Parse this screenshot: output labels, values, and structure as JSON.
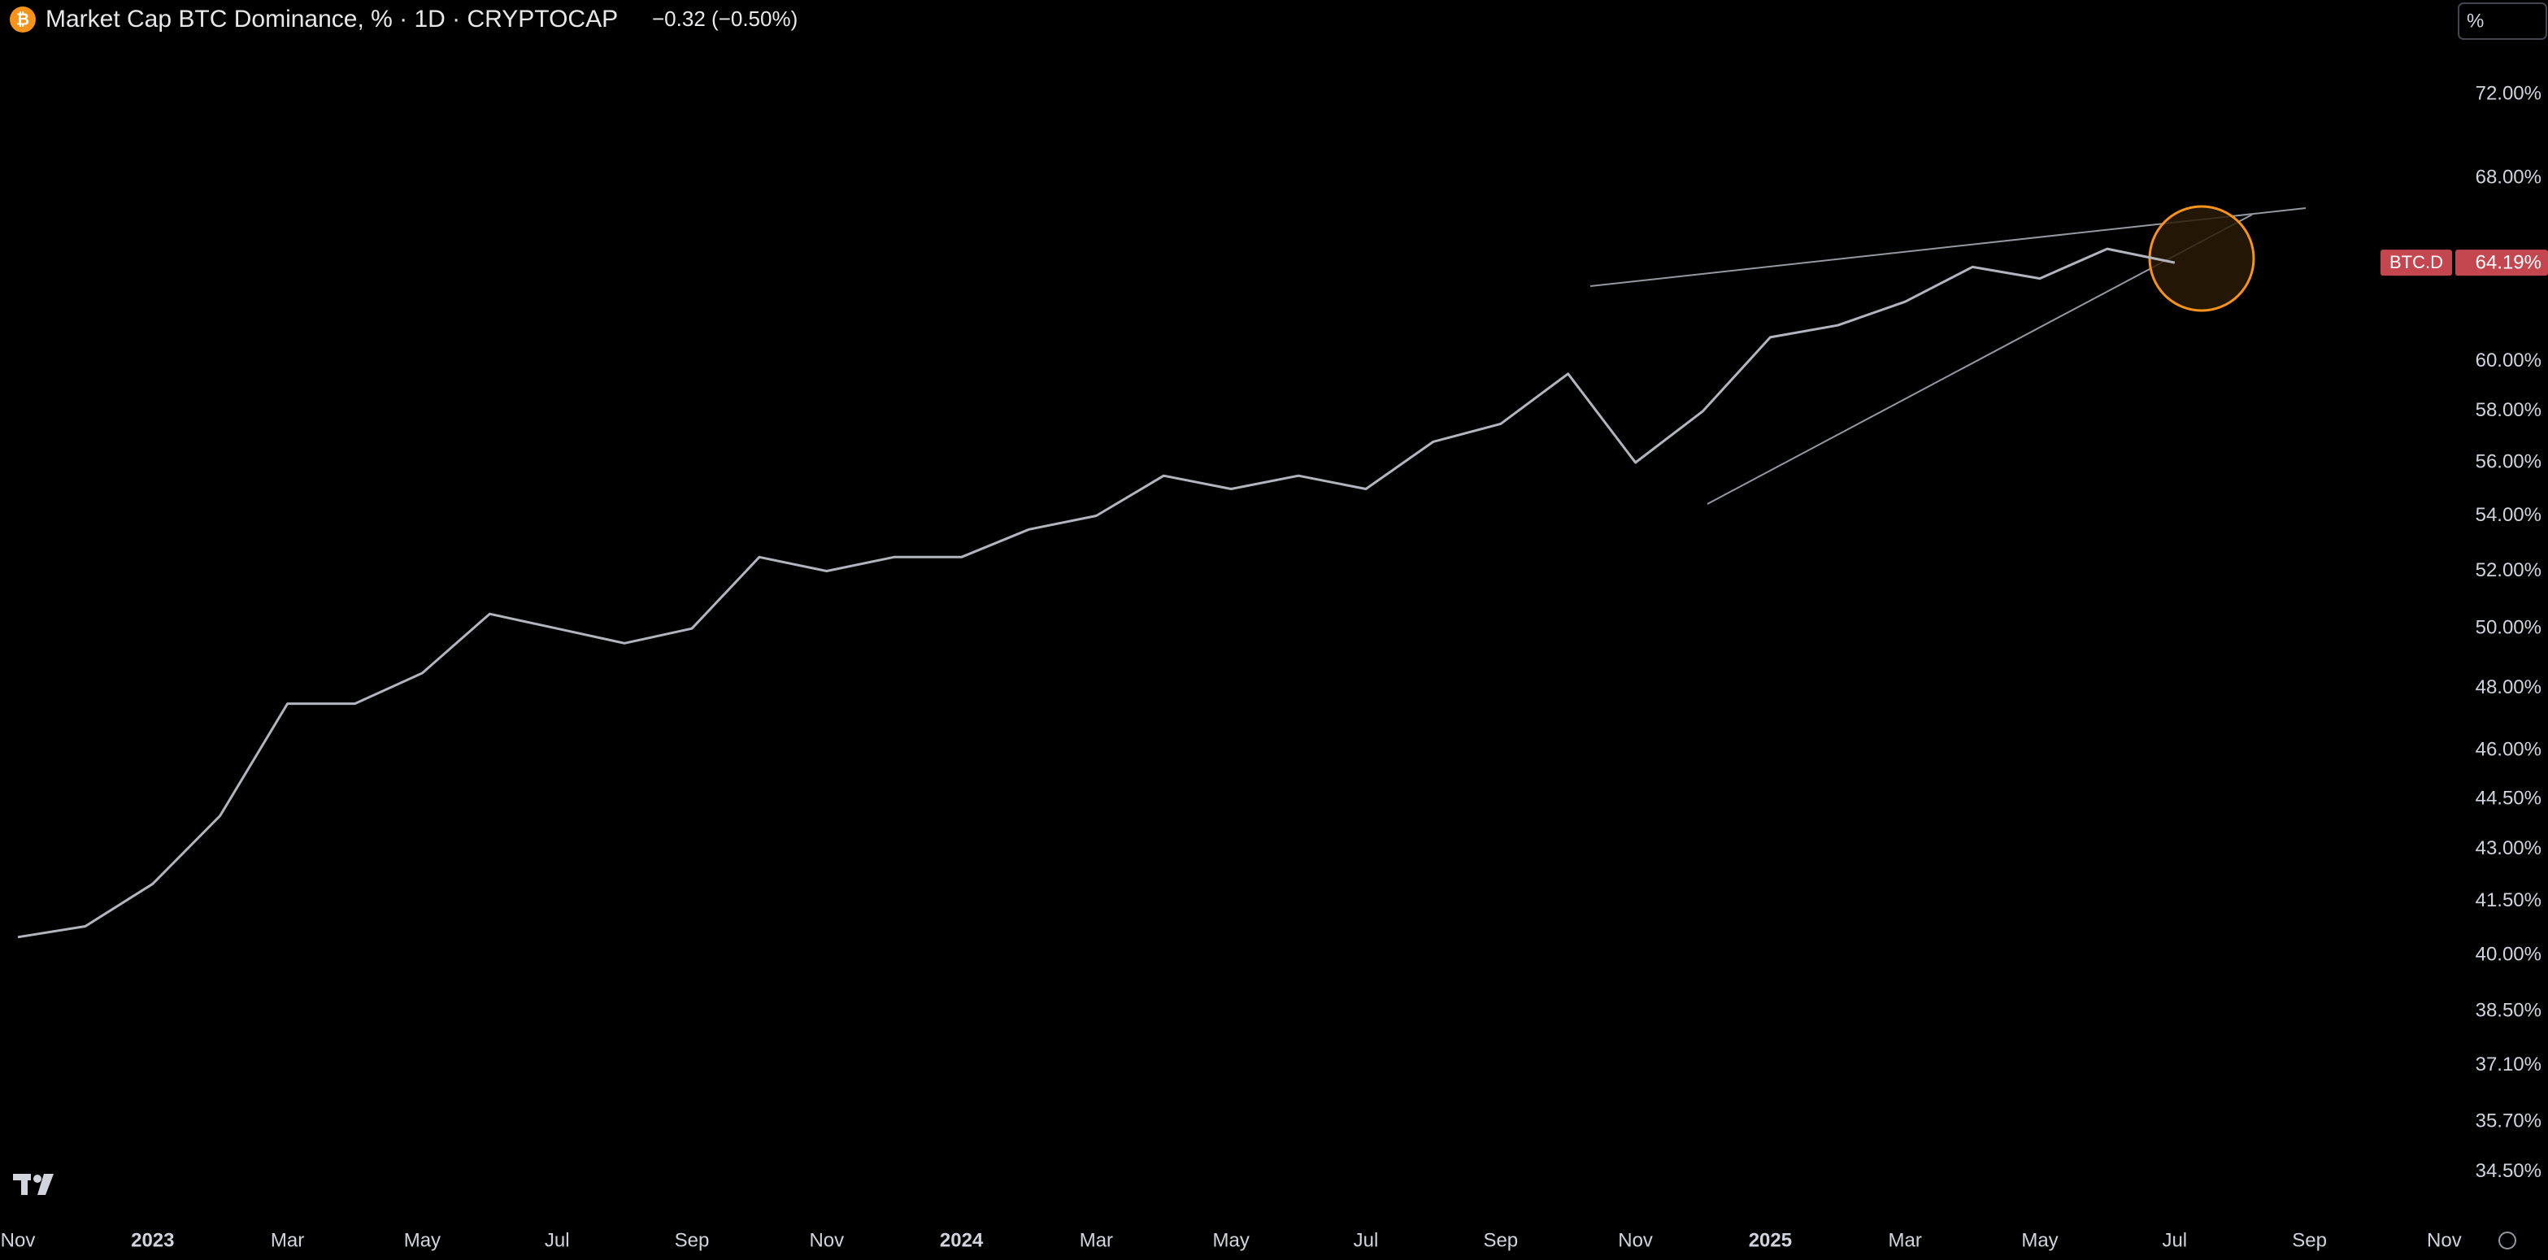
{
  "chart_data": {
    "type": "line",
    "title": "Market Cap BTC Dominance, % · 1D · CRYPTOCAP",
    "change": "−0.32 (−0.50%)",
    "scale_button": "%",
    "x": [
      "2022-11",
      "2022-12",
      "2023-01",
      "2023-02",
      "2023-03",
      "2023-04",
      "2023-05",
      "2023-06",
      "2023-07",
      "2023-08",
      "2023-09",
      "2023-10",
      "2023-11",
      "2023-12",
      "2024-01",
      "2024-02",
      "2024-03",
      "2024-04",
      "2024-05",
      "2024-06",
      "2024-07",
      "2024-08",
      "2024-09",
      "2024-10",
      "2024-11",
      "2024-12",
      "2025-01",
      "2025-02",
      "2025-03",
      "2025-04",
      "2025-05",
      "2025-06",
      "2025-07"
    ],
    "series": [
      {
        "name": "BTC.D",
        "color": "#b2b5be",
        "tag_color": "#c4474f",
        "values": [
          40.5,
          40.8,
          42.0,
          44.0,
          47.5,
          47.5,
          48.5,
          50.5,
          50.0,
          49.5,
          50.0,
          52.5,
          52.0,
          52.5,
          52.5,
          53.5,
          54.0,
          55.5,
          55.0,
          55.5,
          55.0,
          56.8,
          57.5,
          59.5,
          56.0,
          58.0,
          61.0,
          61.5,
          62.5,
          64.0,
          63.5,
          64.8,
          64.19
        ],
        "value_labels": [
          null,
          null,
          null,
          null,
          null,
          null,
          null,
          null,
          null,
          null,
          null,
          null,
          null,
          null,
          null,
          null,
          null,
          null,
          null,
          null,
          null,
          null,
          null,
          null,
          null,
          null,
          null,
          null,
          null,
          null,
          null,
          null,
          "64.19%"
        ]
      }
    ],
    "log_y": true,
    "grid": false,
    "ylim": [
      33.4,
      76.8
    ],
    "yticks": [
      {
        "value": 72,
        "label": "72.00%"
      },
      {
        "value": 68,
        "label": "68.00%"
      },
      {
        "value": 60,
        "label": "60.00%"
      },
      {
        "value": 58,
        "label": "58.00%"
      },
      {
        "value": 56,
        "label": "56.00%"
      },
      {
        "value": 54,
        "label": "54.00%"
      },
      {
        "value": 52,
        "label": "52.00%"
      },
      {
        "value": 50,
        "label": "50.00%"
      },
      {
        "value": 48,
        "label": "48.00%"
      },
      {
        "value": 46,
        "label": "46.00%"
      },
      {
        "value": 44.5,
        "label": "44.50%"
      },
      {
        "value": 43,
        "label": "43.00%"
      },
      {
        "value": 41.5,
        "label": "41.50%"
      },
      {
        "value": 40,
        "label": "40.00%"
      },
      {
        "value": 38.5,
        "label": "38.50%"
      },
      {
        "value": 37.1,
        "label": "37.10%"
      },
      {
        "value": 35.7,
        "label": "35.70%"
      },
      {
        "value": 34.5,
        "label": "34.50%"
      }
    ],
    "xticks": [
      {
        "value": "2022-11",
        "label": "Nov"
      },
      {
        "value": "2023-01",
        "label": "2023"
      },
      {
        "value": "2023-03",
        "label": "Mar"
      },
      {
        "value": "2023-05",
        "label": "May"
      },
      {
        "value": "2023-07",
        "label": "Jul"
      },
      {
        "value": "2023-09",
        "label": "Sep"
      },
      {
        "value": "2023-11",
        "label": "Nov"
      },
      {
        "value": "2024-01",
        "label": "2024"
      },
      {
        "value": "2024-03",
        "label": "Mar"
      },
      {
        "value": "2024-05",
        "label": "May"
      },
      {
        "value": "2024-07",
        "label": "Jul"
      },
      {
        "value": "2024-09",
        "label": "Sep"
      },
      {
        "value": "2024-11",
        "label": "Nov"
      },
      {
        "value": "2025-01",
        "label": "2025"
      },
      {
        "value": "2025-03",
        "label": "Mar"
      },
      {
        "value": "2025-05",
        "label": "May"
      },
      {
        "value": "2025-07",
        "label": "Jul"
      },
      {
        "value": "2025-09",
        "label": "Sep"
      },
      {
        "value": "2025-11",
        "label": "Nov"
      }
    ]
  }
}
